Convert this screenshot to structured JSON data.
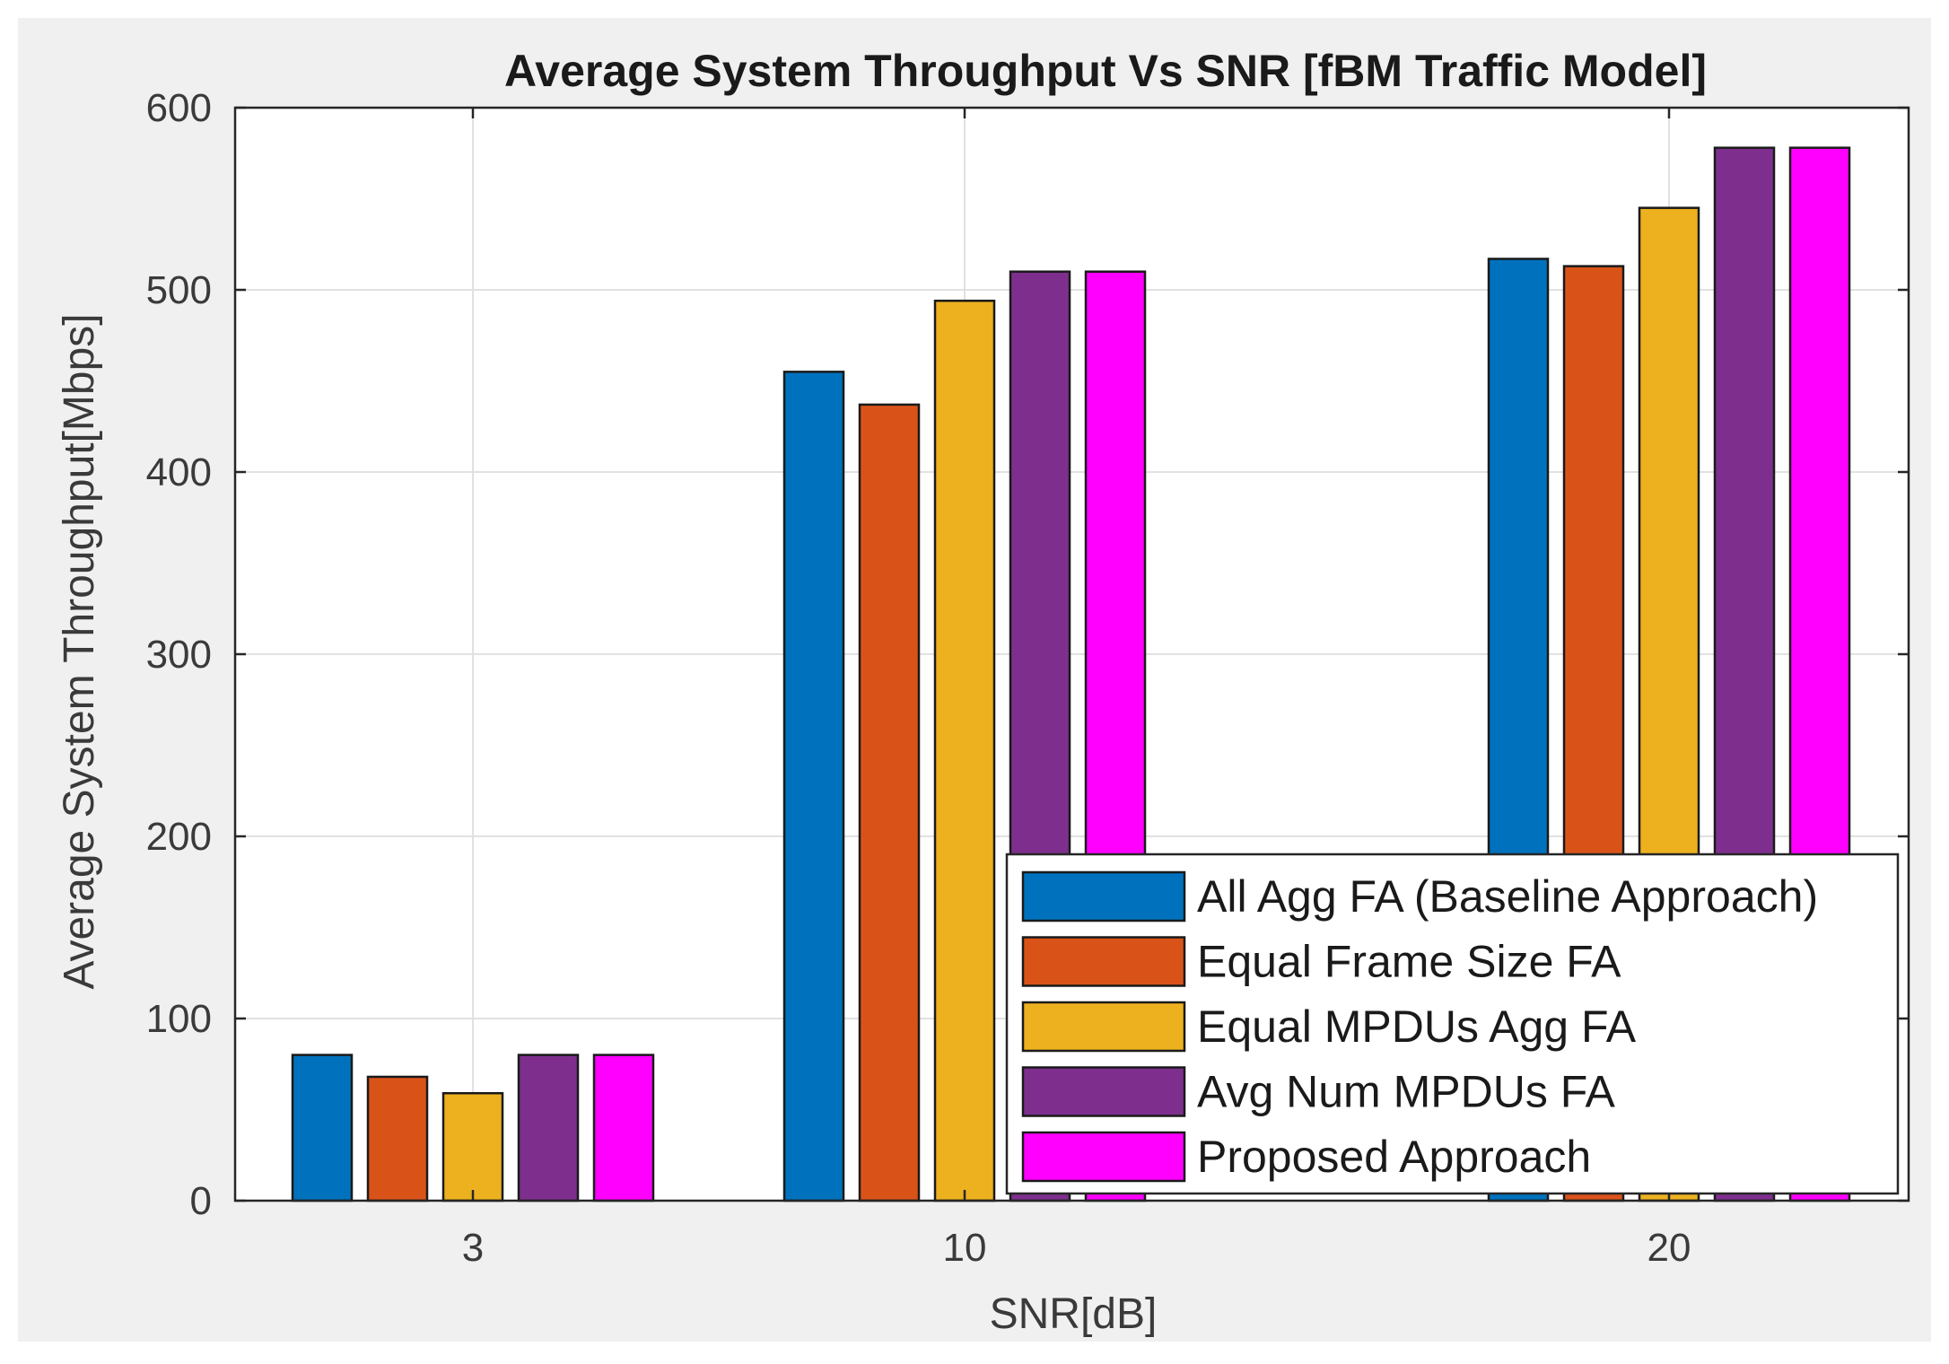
{
  "chart_data": {
    "type": "bar",
    "title": "Average System Throughput Vs SNR [fBM Traffic Model]",
    "xlabel": "SNR[dB]",
    "ylabel": "Average System Throughput[Mbps]",
    "categories": [
      "3",
      "10",
      "20"
    ],
    "ylim": [
      0,
      600
    ],
    "yticks": [
      0,
      100,
      200,
      300,
      400,
      500,
      600
    ],
    "grid": true,
    "legend_position": "bottom-right",
    "series": [
      {
        "name": "All Agg FA (Baseline Approach)",
        "color": "#0072bd",
        "values": [
          80,
          455,
          517
        ]
      },
      {
        "name": "Equal Frame Size FA",
        "color": "#d95319",
        "values": [
          68,
          437,
          513
        ]
      },
      {
        "name": "Equal MPDUs Agg FA",
        "color": "#edb120",
        "values": [
          59,
          494,
          545
        ]
      },
      {
        "name": "Avg Num MPDUs FA",
        "color": "#7e2f8e",
        "values": [
          80,
          510,
          578
        ]
      },
      {
        "name": "Proposed Approach",
        "color": "#ff00ff",
        "values": [
          80,
          510,
          578
        ]
      }
    ]
  }
}
